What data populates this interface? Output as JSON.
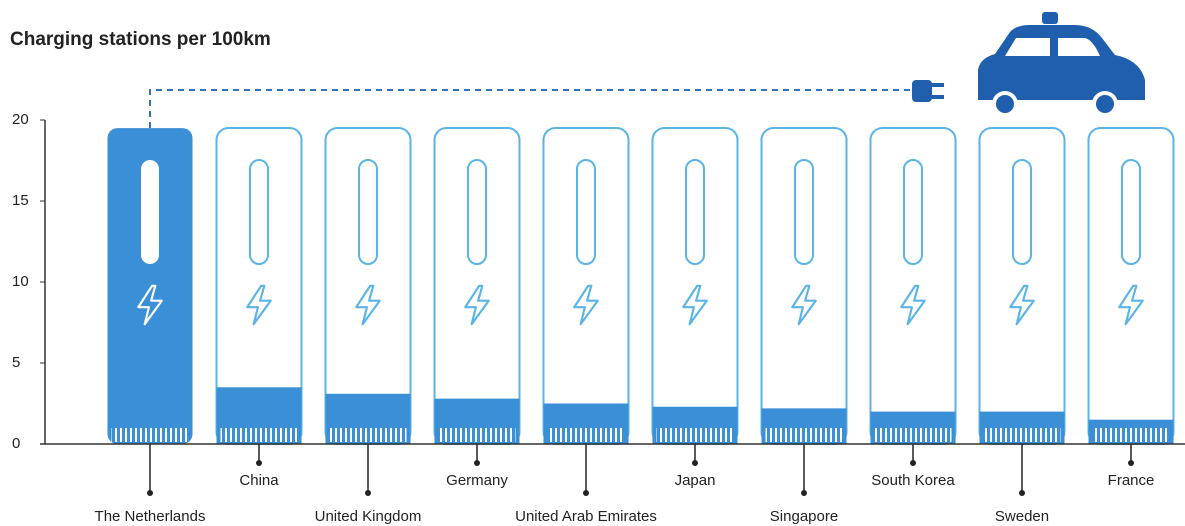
{
  "chart_data": {
    "type": "bar",
    "title": "Charging stations per 100km",
    "categories": [
      "The Netherlands",
      "China",
      "United Kingdom",
      "Germany",
      "United Arab Emirates",
      "Japan",
      "Singapore",
      "South Korea",
      "Sweden",
      "France"
    ],
    "values": [
      19.5,
      3.5,
      3.1,
      2.8,
      2.5,
      2.3,
      2.2,
      2.0,
      2.0,
      1.5
    ],
    "color": "#3a8fd6",
    "ylim": [
      0,
      20
    ],
    "yticks": [
      0,
      5,
      10,
      15,
      20
    ]
  }
}
